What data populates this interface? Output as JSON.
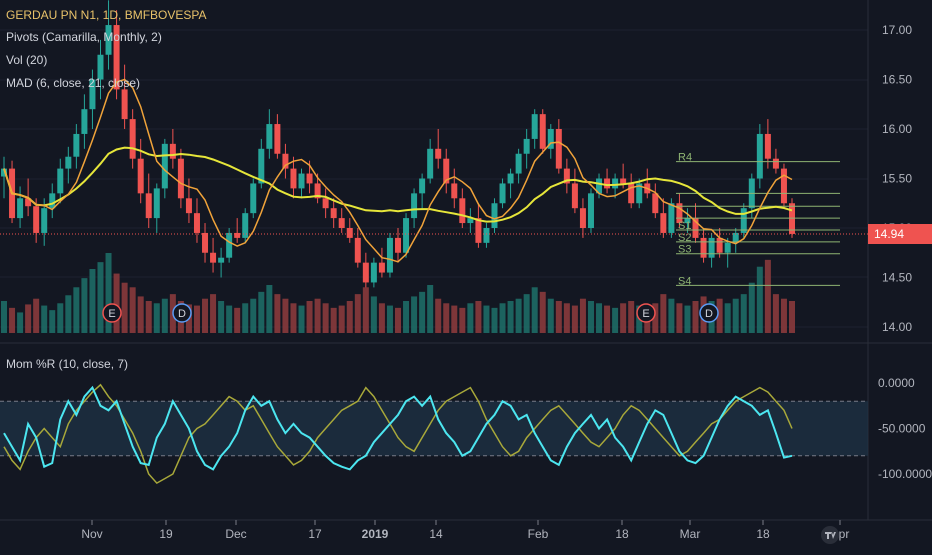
{
  "legend": {
    "symbol": "GERDAU PN N1, 1D, BMFBOVESPA",
    "pivots": "Pivots (Camarilla, Monthly, 2)",
    "vol": "Vol (20)",
    "mad": "MAD (6, close, 21, close)",
    "mom": "Mom %R (10, close, 7)"
  },
  "last_price": "14.94",
  "colors": {
    "background": "#131722",
    "up": "#26a69a",
    "down": "#ef5350",
    "ma_fast": "#f0a33a",
    "ma_slow": "#e6e63a",
    "pivot": "#8fb573",
    "osc_fast": "#4ce6f0",
    "osc_slow": "#a8a83a",
    "grid": "#1e2230",
    "text": "#b2b5be"
  },
  "chart_data": [
    {
      "type": "candlestick",
      "title": "GERDAU PN N1, 1D, BMFBOVESPA",
      "y_ticks": [
        "17.00",
        "16.50",
        "16.00",
        "15.50",
        "15.00",
        "14.50",
        "14.00"
      ],
      "ylim": [
        13.95,
        17.2
      ],
      "x_ticks": [
        "Nov",
        "19",
        "Dec",
        "17",
        "2019",
        "14",
        "Feb",
        "18",
        "Mar",
        "18",
        "Apr"
      ],
      "events": [
        "E",
        "D",
        "E",
        "D"
      ],
      "pivots": {
        "labels": [
          "R4",
          "S1",
          "S2",
          "S3",
          "S4"
        ]
      },
      "candles": [
        [
          15.52,
          15.72,
          15.3,
          15.6
        ],
        [
          15.6,
          15.68,
          15.05,
          15.1
        ],
        [
          15.1,
          15.42,
          15.0,
          15.3
        ],
        [
          15.3,
          15.5,
          15.12,
          15.22
        ],
        [
          15.22,
          15.3,
          14.85,
          14.95
        ],
        [
          14.95,
          15.3,
          14.82,
          15.2
        ],
        [
          15.2,
          15.45,
          15.1,
          15.35
        ],
        [
          15.35,
          15.7,
          15.25,
          15.6
        ],
        [
          15.6,
          15.82,
          15.45,
          15.72
        ],
        [
          15.72,
          16.05,
          15.6,
          15.95
        ],
        [
          15.95,
          16.35,
          15.8,
          16.2
        ],
        [
          16.2,
          16.6,
          16.0,
          16.5
        ],
        [
          16.5,
          16.9,
          16.3,
          16.75
        ],
        [
          16.75,
          17.3,
          16.6,
          17.05
        ],
        [
          17.05,
          17.2,
          16.3,
          16.4
        ],
        [
          16.4,
          16.65,
          16.0,
          16.1
        ],
        [
          16.1,
          16.2,
          15.6,
          15.7
        ],
        [
          15.7,
          15.9,
          15.25,
          15.35
        ],
        [
          15.35,
          15.55,
          15.0,
          15.1
        ],
        [
          15.1,
          15.45,
          14.95,
          15.4
        ],
        [
          15.4,
          15.9,
          15.3,
          15.85
        ],
        [
          15.85,
          16.0,
          15.6,
          15.7
        ],
        [
          15.7,
          15.8,
          15.2,
          15.3
        ],
        [
          15.3,
          15.5,
          15.05,
          15.15
        ],
        [
          15.15,
          15.3,
          14.85,
          14.95
        ],
        [
          14.95,
          15.05,
          14.65,
          14.75
        ],
        [
          14.75,
          14.9,
          14.55,
          14.65
        ],
        [
          14.65,
          14.8,
          14.5,
          14.7
        ],
        [
          14.7,
          15.0,
          14.65,
          14.95
        ],
        [
          14.95,
          15.1,
          14.85,
          14.9
        ],
        [
          14.9,
          15.2,
          14.85,
          15.15
        ],
        [
          15.15,
          15.5,
          15.1,
          15.45
        ],
        [
          15.45,
          15.9,
          15.4,
          15.8
        ],
        [
          15.8,
          16.2,
          15.7,
          16.05
        ],
        [
          16.05,
          16.15,
          15.7,
          15.75
        ],
        [
          15.75,
          15.85,
          15.5,
          15.6
        ],
        [
          15.6,
          15.72,
          15.3,
          15.4
        ],
        [
          15.4,
          15.6,
          15.3,
          15.55
        ],
        [
          15.55,
          15.68,
          15.35,
          15.45
        ],
        [
          15.45,
          15.55,
          15.25,
          15.3
        ],
        [
          15.3,
          15.4,
          15.1,
          15.2
        ],
        [
          15.2,
          15.3,
          15.0,
          15.1
        ],
        [
          15.1,
          15.2,
          14.95,
          15.0
        ],
        [
          15.0,
          15.1,
          14.85,
          14.9
        ],
        [
          14.9,
          15.0,
          14.6,
          14.65
        ],
        [
          14.65,
          14.75,
          14.4,
          14.45
        ],
        [
          14.45,
          14.7,
          14.4,
          14.65
        ],
        [
          14.65,
          14.8,
          14.5,
          14.55
        ],
        [
          14.55,
          14.95,
          14.5,
          14.9
        ],
        [
          14.9,
          15.0,
          14.65,
          14.75
        ],
        [
          14.75,
          15.15,
          14.7,
          15.1
        ],
        [
          15.1,
          15.4,
          15.0,
          15.35
        ],
        [
          15.35,
          15.55,
          15.2,
          15.5
        ],
        [
          15.5,
          15.9,
          15.45,
          15.8
        ],
        [
          15.8,
          16.0,
          15.6,
          15.7
        ],
        [
          15.7,
          15.8,
          15.35,
          15.45
        ],
        [
          15.45,
          15.6,
          15.2,
          15.3
        ],
        [
          15.3,
          15.4,
          15.0,
          15.05
        ],
        [
          15.05,
          15.2,
          14.95,
          15.1
        ],
        [
          15.1,
          15.25,
          14.8,
          14.85
        ],
        [
          14.85,
          15.05,
          14.8,
          15.0
        ],
        [
          15.0,
          15.3,
          14.95,
          15.25
        ],
        [
          15.25,
          15.5,
          15.2,
          15.45
        ],
        [
          15.45,
          15.6,
          15.3,
          15.55
        ],
        [
          15.55,
          15.8,
          15.45,
          15.75
        ],
        [
          15.75,
          16.0,
          15.6,
          15.9
        ],
        [
          15.9,
          16.2,
          15.8,
          16.15
        ],
        [
          16.15,
          16.2,
          15.75,
          15.8
        ],
        [
          15.8,
          16.05,
          15.7,
          16.0
        ],
        [
          16.0,
          16.1,
          15.55,
          15.6
        ],
        [
          15.6,
          15.7,
          15.35,
          15.45
        ],
        [
          15.45,
          15.6,
          15.15,
          15.2
        ],
        [
          15.2,
          15.3,
          14.9,
          15.0
        ],
        [
          15.0,
          15.4,
          14.95,
          15.35
        ],
        [
          15.35,
          15.55,
          15.3,
          15.5
        ],
        [
          15.5,
          15.6,
          15.35,
          15.4
        ],
        [
          15.4,
          15.55,
          15.3,
          15.5
        ],
        [
          15.5,
          15.65,
          15.4,
          15.45
        ],
        [
          15.45,
          15.55,
          15.2,
          15.25
        ],
        [
          15.25,
          15.5,
          15.2,
          15.45
        ],
        [
          15.45,
          15.6,
          15.3,
          15.35
        ],
        [
          15.35,
          15.45,
          15.1,
          15.15
        ],
        [
          15.15,
          15.3,
          14.9,
          14.95
        ],
        [
          14.95,
          15.3,
          14.9,
          15.25
        ],
        [
          15.25,
          15.35,
          15.0,
          15.05
        ],
        [
          15.05,
          15.2,
          14.95,
          15.1
        ],
        [
          15.1,
          15.25,
          14.85,
          14.9
        ],
        [
          14.9,
          15.0,
          14.65,
          14.7
        ],
        [
          14.7,
          14.95,
          14.6,
          14.9
        ],
        [
          14.9,
          15.0,
          14.7,
          14.75
        ],
        [
          14.75,
          14.9,
          14.6,
          14.85
        ],
        [
          14.85,
          15.0,
          14.75,
          14.95
        ],
        [
          14.95,
          15.25,
          14.9,
          15.2
        ],
        [
          15.2,
          15.55,
          15.1,
          15.5
        ],
        [
          15.5,
          16.05,
          15.4,
          15.95
        ],
        [
          15.95,
          16.1,
          15.6,
          15.7
        ],
        [
          15.7,
          15.8,
          15.55,
          15.6
        ],
        [
          15.6,
          15.65,
          15.2,
          15.25
        ],
        [
          15.25,
          15.3,
          14.9,
          14.94
        ]
      ],
      "volume": [
        28,
        22,
        18,
        25,
        30,
        24,
        20,
        26,
        33,
        40,
        48,
        56,
        62,
        70,
        52,
        44,
        40,
        32,
        28,
        26,
        30,
        34,
        28,
        25,
        24,
        30,
        34,
        28,
        24,
        22,
        26,
        30,
        36,
        42,
        34,
        30,
        26,
        24,
        28,
        30,
        26,
        22,
        24,
        28,
        34,
        40,
        32,
        26,
        24,
        22,
        28,
        32,
        36,
        42,
        30,
        26,
        24,
        22,
        26,
        28,
        24,
        22,
        26,
        28,
        30,
        34,
        40,
        36,
        30,
        28,
        26,
        24,
        30,
        28,
        26,
        24,
        22,
        26,
        28,
        24,
        22,
        26,
        34,
        30,
        26,
        24,
        28,
        32,
        28,
        30,
        26,
        30,
        34,
        44,
        58,
        64,
        34,
        30,
        28
      ]
    },
    {
      "type": "line",
      "title": "Mom %R (10, close, 7)",
      "y_ticks": [
        "0.0000",
        "-50.0000",
        "-100.0000"
      ],
      "ylim": [
        -120,
        20
      ],
      "levels": [
        -20,
        -80
      ],
      "series": [
        {
          "values": [
            -55,
            -70,
            -85,
            -45,
            -60,
            -92,
            -88,
            -40,
            -20,
            -35,
            -15,
            -5,
            -25,
            -30,
            -20,
            -45,
            -70,
            -88,
            -90,
            -60,
            -45,
            -20,
            -35,
            -50,
            -75,
            -90,
            -95,
            -80,
            -70,
            -55,
            -30,
            -15,
            -25,
            -20,
            -40,
            -55,
            -45,
            -55,
            -60,
            -70,
            -80,
            -88,
            -92,
            -95,
            -85,
            -80,
            -65,
            -55,
            -45,
            -35,
            -20,
            -15,
            -25,
            -15,
            -40,
            -55,
            -65,
            -80,
            -75,
            -60,
            -45,
            -35,
            -20,
            -25,
            -40,
            -35,
            -55,
            -70,
            -85,
            -90,
            -70,
            -55,
            -45,
            -35,
            -50,
            -40,
            -60,
            -70,
            -85,
            -65,
            -45,
            -30,
            -35,
            -55,
            -75,
            -85,
            -88,
            -80,
            -60,
            -40,
            -25,
            -15,
            -20,
            -25,
            -35,
            -30,
            -55,
            -82,
            -80
          ]
        },
        {
          "values": [
            -70,
            -85,
            -95,
            -75,
            -60,
            -50,
            -60,
            -70,
            -45,
            -30,
            -20,
            -10,
            -2,
            -15,
            -25,
            -40,
            -55,
            -75,
            -100,
            -110,
            -105,
            -100,
            -80,
            -60,
            -50,
            -45,
            -35,
            -25,
            -15,
            -20,
            -30,
            -25,
            -40,
            -55,
            -70,
            -80,
            -90,
            -85,
            -75,
            -60,
            -50,
            -40,
            -30,
            -25,
            -20,
            -5,
            -15,
            -30,
            -45,
            -60,
            -70,
            -75,
            -60,
            -45,
            -30,
            -20,
            -15,
            -10,
            -5,
            -20,
            -40,
            -55,
            -70,
            -80,
            -75,
            -60,
            -50,
            -40,
            -30,
            -25,
            -35,
            -45,
            -55,
            -65,
            -70,
            -60,
            -50,
            -35,
            -25,
            -30,
            -40,
            -50,
            -60,
            -70,
            -80,
            -75,
            -65,
            -55,
            -45,
            -40,
            -30,
            -20,
            -15,
            -10,
            -5,
            -10,
            -20,
            -30,
            -50
          ]
        }
      ]
    }
  ]
}
